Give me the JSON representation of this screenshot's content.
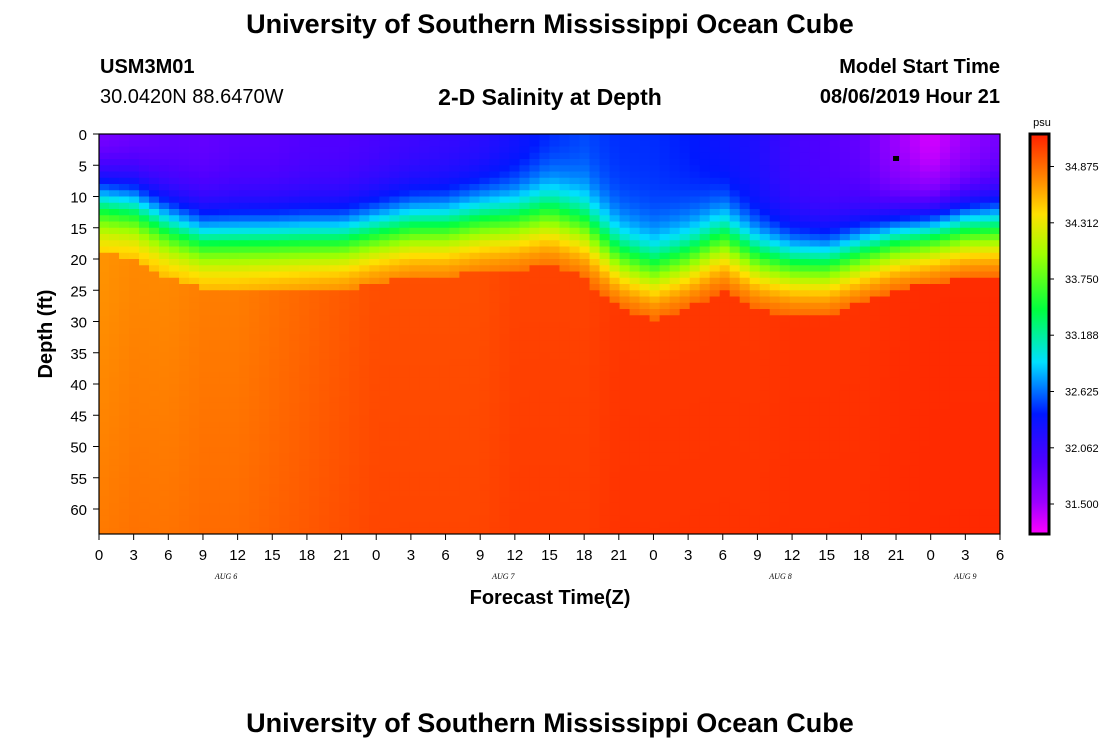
{
  "header": {
    "title": "University of Southern Mississippi Ocean Cube",
    "footer_title": "University of Southern Mississippi Ocean Cube",
    "station_id": "USM3M01",
    "station_coords": "30.0420N 88.6470W",
    "plot_title": "2-D Salinity at Depth",
    "model_start_label": "Model Start Time",
    "model_start_value": "08/06/2019 Hour 21"
  },
  "chart_data": {
    "type": "heatmap",
    "title": "2-D Salinity at Depth",
    "xlabel": "Forecast Time(Z)",
    "ylabel": "Depth (ft)",
    "xlim": [
      0,
      78
    ],
    "ylim": [
      0,
      64
    ],
    "y_inverted": true,
    "x_ticks": [
      0,
      3,
      6,
      9,
      12,
      15,
      18,
      21,
      24,
      27,
      30,
      33,
      36,
      39,
      42,
      45,
      48,
      51,
      54,
      57,
      60,
      63,
      66,
      69,
      72,
      75,
      78
    ],
    "x_tick_labels": [
      "0",
      "3",
      "6",
      "9",
      "12",
      "15",
      "18",
      "21",
      "0",
      "3",
      "6",
      "9",
      "12",
      "15",
      "18",
      "21",
      "0",
      "3",
      "6",
      "9",
      "12",
      "15",
      "18",
      "21",
      "0",
      "3",
      "6"
    ],
    "y_ticks": [
      0,
      5,
      10,
      15,
      20,
      25,
      30,
      35,
      40,
      45,
      50,
      55,
      60
    ],
    "y_tick_labels": [
      "0",
      "5",
      "10",
      "15",
      "20",
      "25",
      "30",
      "35",
      "40",
      "45",
      "50",
      "55",
      "60"
    ],
    "day_labels": [
      {
        "text": "AUG 6",
        "x": 11
      },
      {
        "text": "AUG 7",
        "x": 35
      },
      {
        "text": "AUG 8",
        "x": 59
      },
      {
        "text": "AUG 9",
        "x": 75
      }
    ],
    "colorbar": {
      "unit": "psu",
      "range": [
        31.2,
        35.2
      ],
      "tick_values": [
        34.875,
        34.312,
        33.75,
        33.188,
        32.625,
        32.062,
        31.5
      ],
      "tick_labels": [
        "34.875",
        "34.312",
        "33.750",
        "33.188",
        "32.625",
        "32.062",
        "31.500"
      ]
    },
    "surface_layer": {
      "description_times": [
        0,
        3,
        6,
        9,
        12,
        15,
        18,
        21,
        24,
        27,
        30,
        33,
        36,
        39,
        42,
        45,
        48,
        51,
        54,
        57,
        60,
        63,
        66,
        69,
        72,
        75,
        78
      ],
      "halocline_depth_ft": [
        11,
        12,
        15,
        17,
        17,
        17,
        17,
        17,
        16,
        15,
        15,
        14,
        14,
        13,
        15,
        20,
        22,
        20,
        17,
        20,
        21,
        21,
        19,
        17,
        16,
        15,
        15
      ],
      "deep_salinity_psu": [
        34.7,
        34.75,
        34.75,
        34.8,
        34.8,
        34.85,
        34.9,
        34.95,
        35.0,
        35.0,
        35.0,
        35.0,
        35.05,
        35.05,
        35.05,
        35.1,
        35.1,
        35.1,
        35.1,
        35.1,
        35.12,
        35.12,
        35.12,
        35.14,
        35.15,
        35.15,
        35.15
      ],
      "surface_salinity_psu": [
        31.6,
        31.7,
        31.8,
        31.8,
        31.85,
        31.85,
        31.9,
        31.9,
        31.95,
        32.0,
        32.05,
        32.1,
        32.25,
        32.4,
        32.5,
        32.45,
        32.45,
        32.4,
        32.3,
        32.2,
        32.0,
        31.9,
        31.8,
        31.5,
        31.3,
        31.5,
        31.7
      ]
    },
    "marker": {
      "x": 69,
      "y": 4
    }
  }
}
